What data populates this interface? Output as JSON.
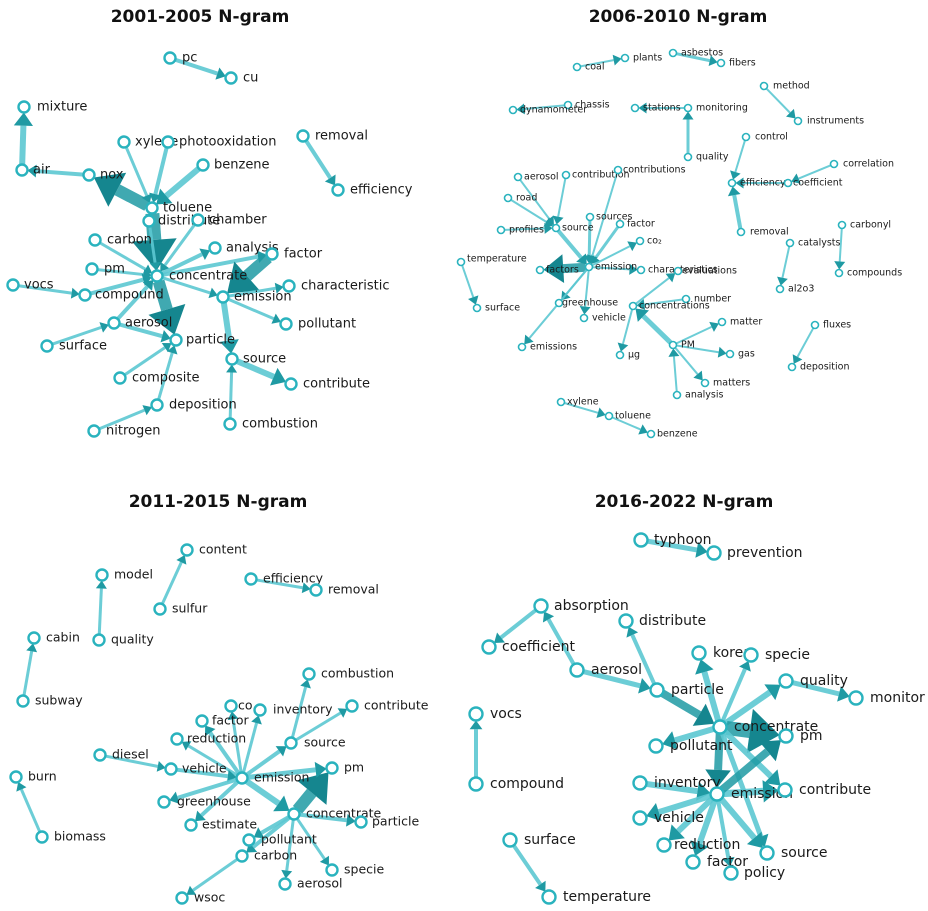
{
  "colors": {
    "edge": "#5cc8d2",
    "edge_dark": "#1f9aa3",
    "arrow_strong": "#15868f",
    "node_stroke": "#2ab3be",
    "text": "#1a1a1a"
  },
  "panels": [
    {
      "id": "p1",
      "title": "2001-2005 N-gram",
      "nodes": {
        "pc": {
          "label": "pc"
        },
        "cu": {
          "label": "cu"
        },
        "mixture": {
          "label": "mixture"
        },
        "air": {
          "label": "air"
        },
        "nox": {
          "label": "nox"
        },
        "xylene": {
          "label": "xylene"
        },
        "photooxidation": {
          "label": "photooxidation"
        },
        "benzene": {
          "label": "benzene"
        },
        "toluene": {
          "label": "toluene"
        },
        "distribute": {
          "label": "distribute"
        },
        "chamber": {
          "label": "chamber"
        },
        "removal": {
          "label": "removal"
        },
        "efficiency": {
          "label": "efficiency"
        },
        "carbon": {
          "label": "carbon"
        },
        "analysis": {
          "label": "analysis"
        },
        "factor": {
          "label": "factor"
        },
        "pm": {
          "label": "pm"
        },
        "concentrate": {
          "label": "concentrate"
        },
        "vocs": {
          "label": "vocs"
        },
        "compound": {
          "label": "compound"
        },
        "emission": {
          "label": "emission"
        },
        "characteristic": {
          "label": "characteristic"
        },
        "aerosol": {
          "label": "aerosol"
        },
        "pollutant": {
          "label": "pollutant"
        },
        "surface": {
          "label": "surface"
        },
        "particle": {
          "label": "particle"
        },
        "source": {
          "label": "source"
        },
        "composite": {
          "label": "composite"
        },
        "contribute": {
          "label": "contribute"
        },
        "deposition": {
          "label": "deposition"
        },
        "combustion": {
          "label": "combustion"
        },
        "nitrogen": {
          "label": "nitrogen"
        }
      },
      "edges": [
        [
          "pc",
          "cu",
          4
        ],
        [
          "air",
          "mixture",
          6
        ],
        [
          "nox",
          "air",
          4
        ],
        [
          "toluene",
          "nox",
          12
        ],
        [
          "xylene",
          "toluene",
          3
        ],
        [
          "photooxidation",
          "toluene",
          4
        ],
        [
          "benzene",
          "toluene",
          6
        ],
        [
          "toluene",
          "distribute",
          4
        ],
        [
          "toluene",
          "concentrate",
          14
        ],
        [
          "removal",
          "efficiency",
          4
        ],
        [
          "carbon",
          "concentrate",
          3
        ],
        [
          "chamber",
          "concentrate",
          3
        ],
        [
          "distribute",
          "concentrate",
          3
        ],
        [
          "pm",
          "concentrate",
          3
        ],
        [
          "concentrate",
          "analysis",
          4
        ],
        [
          "concentrate",
          "factor",
          4
        ],
        [
          "compound",
          "concentrate",
          4
        ],
        [
          "vocs",
          "compound",
          3
        ],
        [
          "concentrate",
          "emission",
          3
        ],
        [
          "factor",
          "emission",
          12
        ],
        [
          "emission",
          "characteristic",
          3
        ],
        [
          "emission",
          "pollutant",
          3
        ],
        [
          "aerosol",
          "concentrate",
          4
        ],
        [
          "concentrate",
          "particle",
          12
        ],
        [
          "surface",
          "aerosol",
          3
        ],
        [
          "aerosol",
          "particle",
          4
        ],
        [
          "emission",
          "source",
          6
        ],
        [
          "source",
          "contribute",
          6
        ],
        [
          "composite",
          "particle",
          3
        ],
        [
          "deposition",
          "particle",
          3
        ],
        [
          "combustion",
          "source",
          3
        ],
        [
          "nitrogen",
          "deposition",
          3
        ]
      ]
    },
    {
      "id": "p2",
      "title": "2006-2010 N-gram",
      "nodes": {
        "coal": {
          "label": "coal"
        },
        "plants": {
          "label": "plants"
        },
        "asbestos": {
          "label": "asbestos"
        },
        "fibers": {
          "label": "fibers"
        },
        "chassis": {
          "label": "chassis"
        },
        "dynamometer": {
          "label": "dynamometer"
        },
        "stations": {
          "label": "stations"
        },
        "monitoring": {
          "label": "monitoring"
        },
        "method": {
          "label": "method"
        },
        "instruments": {
          "label": "instruments"
        },
        "quality": {
          "label": "quality"
        },
        "control": {
          "label": "control"
        },
        "correlation": {
          "label": "correlation"
        },
        "aerosol": {
          "label": "aerosol"
        },
        "contribution": {
          "label": "contribution"
        },
        "contributions": {
          "label": "contributions"
        },
        "efficiency": {
          "label": "efficiency"
        },
        "coefficient": {
          "label": "coefficient"
        },
        "road": {
          "label": "road"
        },
        "sources": {
          "label": "sources"
        },
        "factor": {
          "label": "factor"
        },
        "source": {
          "label": "source"
        },
        "profiles": {
          "label": "profiles"
        },
        "co2": {
          "label": "co₂"
        },
        "removal": {
          "label": "removal"
        },
        "catalysts": {
          "label": "catalysts"
        },
        "carbonyl": {
          "label": "carbonyl"
        },
        "temperature": {
          "label": "temperature"
        },
        "factors": {
          "label": "factors"
        },
        "emission": {
          "label": "emission"
        },
        "characteristics": {
          "label": "characteristics"
        },
        "evaluations": {
          "label": "evaluations"
        },
        "compounds": {
          "label": "compounds"
        },
        "al2o3": {
          "label": "al2o3"
        },
        "surface": {
          "label": "surface"
        },
        "greenhouse": {
          "label": "greenhouse"
        },
        "number": {
          "label": "number"
        },
        "concentrations": {
          "label": "concentrations"
        },
        "vehicle": {
          "label": "vehicle"
        },
        "matter": {
          "label": "matter"
        },
        "fluxes": {
          "label": "fluxes"
        },
        "emissions": {
          "label": "emissions"
        },
        "pm": {
          "label": "PM"
        },
        "gas": {
          "label": "gas"
        },
        "ug": {
          "label": "μg"
        },
        "deposition": {
          "label": "deposition"
        },
        "matters": {
          "label": "matters"
        },
        "analysis": {
          "label": "analysis"
        },
        "xylene": {
          "label": "xylene"
        },
        "toluene": {
          "label": "toluene"
        },
        "benzene": {
          "label": "benzene"
        }
      },
      "edges": [
        [
          "coal",
          "plants",
          2
        ],
        [
          "asbestos",
          "fibers",
          3
        ],
        [
          "chassis",
          "dynamometer",
          2
        ],
        [
          "monitoring",
          "stations",
          2
        ],
        [
          "quality",
          "monitoring",
          3
        ],
        [
          "method",
          "instruments",
          2
        ],
        [
          "control",
          "efficiency",
          2
        ],
        [
          "removal",
          "efficiency",
          4
        ],
        [
          "correlation",
          "coefficient",
          2
        ],
        [
          "coefficient",
          "efficiency",
          2
        ],
        [
          "aerosol",
          "source",
          2
        ],
        [
          "contribution",
          "source",
          2
        ],
        [
          "road",
          "source",
          2
        ],
        [
          "profiles",
          "source",
          2
        ],
        [
          "source",
          "emission",
          4
        ],
        [
          "sources",
          "emission",
          3
        ],
        [
          "factor",
          "emission",
          3
        ],
        [
          "contributions",
          "emission",
          2
        ],
        [
          "emission",
          "co2",
          2
        ],
        [
          "emission",
          "factors",
          9
        ],
        [
          "temperature",
          "surface",
          2
        ],
        [
          "emission",
          "characteristics",
          2
        ],
        [
          "emission",
          "greenhouse",
          2
        ],
        [
          "emission",
          "emissions",
          2
        ],
        [
          "emission",
          "vehicle",
          2
        ],
        [
          "catalysts",
          "al2o3",
          2
        ],
        [
          "carbonyl",
          "compounds",
          2
        ],
        [
          "concentrations",
          "evaluations",
          2
        ],
        [
          "number",
          "concentrations",
          2
        ],
        [
          "pm",
          "concentrations",
          5
        ],
        [
          "concentrations",
          "ug",
          2
        ],
        [
          "pm",
          "matter",
          2
        ],
        [
          "pm",
          "gas",
          2
        ],
        [
          "pm",
          "matters",
          2
        ],
        [
          "analysis",
          "pm",
          2
        ],
        [
          "fluxes",
          "deposition",
          2
        ],
        [
          "xylene",
          "toluene",
          2
        ],
        [
          "toluene",
          "benzene",
          2
        ]
      ]
    },
    {
      "id": "p3",
      "title": "2011-2015 N-gram",
      "nodes": {
        "content": {
          "label": "content"
        },
        "model": {
          "label": "model"
        },
        "efficiency": {
          "label": "efficiency"
        },
        "removal": {
          "label": "removal"
        },
        "sulfur": {
          "label": "sulfur"
        },
        "cabin": {
          "label": "cabin"
        },
        "quality": {
          "label": "quality"
        },
        "combustion": {
          "label": "combustion"
        },
        "subway": {
          "label": "subway"
        },
        "co": {
          "label": "co"
        },
        "inventory": {
          "label": "inventory"
        },
        "contribute": {
          "label": "contribute"
        },
        "factor": {
          "label": "factor"
        },
        "reduction": {
          "label": "reduction"
        },
        "source": {
          "label": "source"
        },
        "diesel": {
          "label": "diesel"
        },
        "vehicle": {
          "label": "vehicle"
        },
        "emission": {
          "label": "emission"
        },
        "pm": {
          "label": "pm"
        },
        "burn": {
          "label": "burn"
        },
        "greenhouse": {
          "label": "greenhouse"
        },
        "concentrate": {
          "label": "concentrate"
        },
        "particle": {
          "label": "particle"
        },
        "estimate": {
          "label": "estimate"
        },
        "pollutant": {
          "label": "pollutant"
        },
        "biomass": {
          "label": "biomass"
        },
        "carbon": {
          "label": "carbon"
        },
        "specie": {
          "label": "specie"
        },
        "aerosol": {
          "label": "aerosol"
        },
        "wsoc": {
          "label": "wsoc"
        }
      },
      "edges": [
        [
          "sulfur",
          "content",
          3
        ],
        [
          "quality",
          "model",
          3
        ],
        [
          "efficiency",
          "removal",
          3
        ],
        [
          "subway",
          "cabin",
          3
        ],
        [
          "biomass",
          "burn",
          3
        ],
        [
          "emission",
          "inventory",
          3
        ],
        [
          "emission",
          "co",
          3
        ],
        [
          "emission",
          "factor",
          4
        ],
        [
          "emission",
          "reduction",
          3
        ],
        [
          "diesel",
          "vehicle",
          3
        ],
        [
          "vehicle",
          "emission",
          4
        ],
        [
          "emission",
          "source",
          4
        ],
        [
          "source",
          "contribute",
          3
        ],
        [
          "source",
          "combustion",
          3
        ],
        [
          "emission",
          "greenhouse",
          4
        ],
        [
          "emission",
          "estimate",
          4
        ],
        [
          "emission",
          "concentrate",
          6
        ],
        [
          "concentrate",
          "pm",
          12
        ],
        [
          "emission",
          "pm",
          5
        ],
        [
          "concentrate",
          "particle",
          4
        ],
        [
          "concentrate",
          "specie",
          3
        ],
        [
          "concentrate",
          "pollutant",
          4
        ],
        [
          "concentrate",
          "aerosol",
          3
        ],
        [
          "concentrate",
          "carbon",
          4
        ],
        [
          "carbon",
          "wsoc",
          3
        ]
      ]
    },
    {
      "id": "p4",
      "title": "2016-2022 N-gram",
      "nodes": {
        "typhoon": {
          "label": "typhoon"
        },
        "prevention": {
          "label": "prevention"
        },
        "absorption": {
          "label": "absorption"
        },
        "distribute": {
          "label": "distribute"
        },
        "coefficient": {
          "label": "coefficient"
        },
        "korea": {
          "label": "korea"
        },
        "specie": {
          "label": "specie"
        },
        "aerosol": {
          "label": "aerosol"
        },
        "particle": {
          "label": "particle"
        },
        "quality": {
          "label": "quality"
        },
        "monitor": {
          "label": "monitor"
        },
        "vocs": {
          "label": "vocs"
        },
        "concentrate": {
          "label": "concentrate"
        },
        "pm": {
          "label": "pm"
        },
        "pollutant": {
          "label": "pollutant"
        },
        "compound": {
          "label": "compound"
        },
        "inventory": {
          "label": "inventory"
        },
        "emission": {
          "label": "emission"
        },
        "contribute": {
          "label": "contribute"
        },
        "vehicle": {
          "label": "vehicle"
        },
        "surface": {
          "label": "surface"
        },
        "reduction": {
          "label": "reduction"
        },
        "source": {
          "label": "source"
        },
        "factor": {
          "label": "factor"
        },
        "policy": {
          "label": "policy"
        },
        "temperature": {
          "label": "temperature"
        }
      },
      "edges": [
        [
          "typhoon",
          "prevention",
          5
        ],
        [
          "absorption",
          "coefficient",
          4
        ],
        [
          "aerosol",
          "absorption",
          4
        ],
        [
          "aerosol",
          "particle",
          5
        ],
        [
          "particle",
          "distribute",
          4
        ],
        [
          "particle",
          "concentrate",
          8
        ],
        [
          "concentrate",
          "korea",
          6
        ],
        [
          "concentrate",
          "specie",
          4
        ],
        [
          "concentrate",
          "quality",
          6
        ],
        [
          "quality",
          "monitor",
          5
        ],
        [
          "concentrate",
          "pm",
          14
        ],
        [
          "concentrate",
          "pollutant",
          6
        ],
        [
          "concentrate",
          "contribute",
          6
        ],
        [
          "concentrate",
          "emission",
          8
        ],
        [
          "concentrate",
          "source",
          5
        ],
        [
          "compound",
          "vocs",
          4
        ],
        [
          "inventory",
          "emission",
          6
        ],
        [
          "emission",
          "contribute",
          7
        ],
        [
          "emission",
          "pm",
          8
        ],
        [
          "emission",
          "vehicle",
          6
        ],
        [
          "emission",
          "reduction",
          6
        ],
        [
          "emission",
          "factor",
          6
        ],
        [
          "emission",
          "source",
          6
        ],
        [
          "emission",
          "policy",
          4
        ],
        [
          "surface",
          "temperature",
          4
        ]
      ]
    }
  ]
}
